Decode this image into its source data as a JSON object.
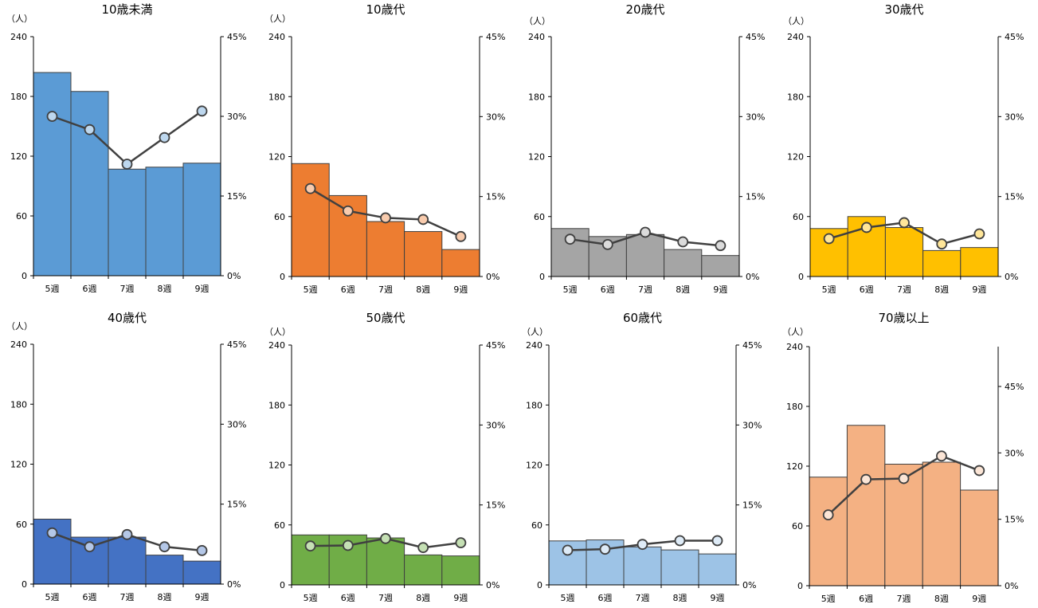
{
  "unit_label": "（人）",
  "chart_data": [
    {
      "type": "bar+line",
      "title": "10歳未満",
      "categories": [
        "5週",
        "6週",
        "7週",
        "8週",
        "9週"
      ],
      "ylabel": "（人）",
      "ylim": [
        0,
        240
      ],
      "yticks": [
        0,
        60,
        120,
        180,
        240
      ],
      "y2lim": [
        0,
        45
      ],
      "y2ticks": [
        "0%",
        "15%",
        "30%",
        "45%"
      ],
      "y2tick_values": [
        0,
        15,
        30,
        45
      ],
      "bar_values": [
        204,
        185,
        107,
        109,
        113
      ],
      "line_values": [
        30,
        27.5,
        21,
        26,
        31
      ],
      "bar_color": "#5b9bd5",
      "marker_color": "#bdd7ee"
    },
    {
      "type": "bar+line",
      "title": "10歳代",
      "categories": [
        "5週",
        "6週",
        "7週",
        "8週",
        "9週"
      ],
      "ylabel": "（人）",
      "ylim": [
        0,
        240
      ],
      "yticks": [
        0,
        60,
        120,
        180,
        240
      ],
      "y2lim": [
        0,
        45
      ],
      "y2ticks": [
        "0%",
        "15%",
        "30%",
        "45%"
      ],
      "y2tick_values": [
        0,
        15,
        30,
        45
      ],
      "bar_values": [
        113,
        81,
        55,
        45,
        27
      ],
      "line_values": [
        16.5,
        12.3,
        11,
        10.7,
        7.5
      ],
      "bar_color": "#ed7d31",
      "marker_color": "#f8cbad"
    },
    {
      "type": "bar+line",
      "title": "20歳代",
      "categories": [
        "5週",
        "6週",
        "7週",
        "8週",
        "9週"
      ],
      "ylabel": "（人）",
      "ylim": [
        0,
        240
      ],
      "yticks": [
        0,
        60,
        120,
        180,
        240
      ],
      "y2lim": [
        0,
        45
      ],
      "y2ticks": [
        "0%",
        "15%",
        "30%",
        "45%"
      ],
      "y2tick_values": [
        0,
        15,
        30,
        45
      ],
      "bar_values": [
        48,
        40,
        42,
        27,
        21
      ],
      "line_values": [
        7,
        6,
        8.3,
        6.5,
        5.8
      ],
      "bar_color": "#a5a5a5",
      "marker_color": "#dbdbdb"
    },
    {
      "type": "bar+line",
      "title": "30歳代",
      "categories": [
        "5週",
        "6週",
        "7週",
        "8週",
        "9週"
      ],
      "ylabel": "（人）",
      "ylim": [
        0,
        240
      ],
      "yticks": [
        0,
        60,
        120,
        180,
        240
      ],
      "y2lim": [
        0,
        45
      ],
      "y2ticks": [
        "0%",
        "15%",
        "30%",
        "45%"
      ],
      "y2tick_values": [
        0,
        15,
        30,
        45
      ],
      "bar_values": [
        48,
        60,
        49,
        26,
        29
      ],
      "line_values": [
        7.1,
        9.2,
        10.1,
        6.1,
        8
      ],
      "bar_color": "#ffc000",
      "marker_color": "#ffe699"
    },
    {
      "type": "bar+line",
      "title": "40歳代",
      "categories": [
        "5週",
        "6週",
        "7週",
        "8週",
        "9週"
      ],
      "ylabel": "（人）",
      "ylim": [
        0,
        240
      ],
      "yticks": [
        0,
        60,
        120,
        180,
        240
      ],
      "y2lim": [
        0,
        45
      ],
      "y2ticks": [
        "0%",
        "15%",
        "30%",
        "45%"
      ],
      "y2tick_values": [
        0,
        15,
        30,
        45
      ],
      "bar_values": [
        65,
        47,
        47,
        29,
        23
      ],
      "line_values": [
        9.6,
        7,
        9.3,
        7,
        6.3
      ],
      "bar_color": "#4472c4",
      "marker_color": "#b4c7e7"
    },
    {
      "type": "bar+line",
      "title": "50歳代",
      "categories": [
        "5週",
        "6週",
        "7週",
        "8週",
        "9週"
      ],
      "ylabel": "（人）",
      "ylim": [
        0,
        240
      ],
      "yticks": [
        0,
        60,
        120,
        180,
        240
      ],
      "y2lim": [
        0,
        45
      ],
      "y2ticks": [
        "0%",
        "15%",
        "30%",
        "45%"
      ],
      "y2tick_values": [
        0,
        15,
        30,
        45
      ],
      "bar_values": [
        50,
        50,
        47,
        30,
        29
      ],
      "line_values": [
        7.3,
        7.4,
        8.7,
        7,
        7.9
      ],
      "bar_color": "#70ad47",
      "marker_color": "#c5e0b4"
    },
    {
      "type": "bar+line",
      "title": "60歳代",
      "categories": [
        "5週",
        "6週",
        "7週",
        "8週",
        "9週"
      ],
      "ylabel": "（人）",
      "ylim": [
        0,
        240
      ],
      "yticks": [
        0,
        60,
        120,
        180,
        240
      ],
      "y2lim": [
        0,
        45
      ],
      "y2ticks": [
        "0%",
        "15%",
        "30%",
        "45%"
      ],
      "y2tick_values": [
        0,
        15,
        30,
        45
      ],
      "bar_values": [
        44,
        45,
        38,
        35,
        31
      ],
      "line_values": [
        6.5,
        6.7,
        7.6,
        8.3,
        8.3
      ],
      "bar_color": "#9dc3e6",
      "marker_color": "#deebf7"
    },
    {
      "type": "bar+line",
      "title": "70歳以上",
      "categories": [
        "5週",
        "6週",
        "7週",
        "8週",
        "9週"
      ],
      "ylabel": "（人）",
      "ylim": [
        0,
        240
      ],
      "yticks": [
        0,
        60,
        120,
        180,
        240
      ],
      "y2lim": [
        0,
        54
      ],
      "y2ticks": [
        "0%",
        "15%",
        "30%",
        "45%"
      ],
      "y2tick_values": [
        0,
        15,
        30,
        45
      ],
      "bar_values": [
        109,
        161,
        122,
        124,
        96
      ],
      "line_values": [
        16,
        24,
        24.2,
        29.3,
        26
      ],
      "bar_color": "#f4b183",
      "marker_color": "#fbe5d6"
    }
  ]
}
